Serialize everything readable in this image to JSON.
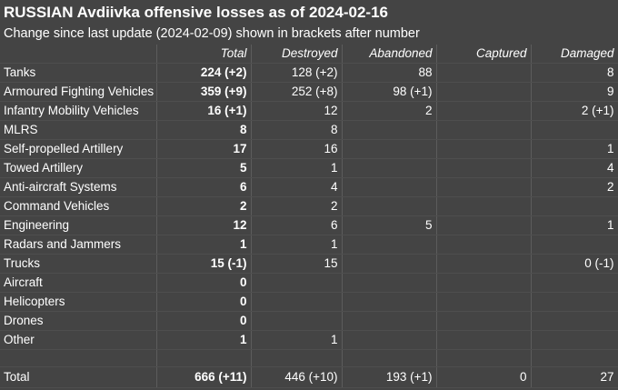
{
  "title": "RUSSIAN Avdiivka offensive losses as of 2024-02-16",
  "subtitle": "Change since last update (2024-02-09) shown in brackets after number",
  "columns": [
    "",
    "Total",
    "Destroyed",
    "Abandoned",
    "Captured",
    "Damaged"
  ],
  "rows": [
    {
      "category": "Tanks",
      "total": "224 (+2)",
      "destroyed": "128 (+2)",
      "abandoned": "88",
      "captured": "",
      "damaged": "8"
    },
    {
      "category": "Armoured Fighting Vehicles",
      "total": "359 (+9)",
      "destroyed": "252 (+8)",
      "abandoned": "98 (+1)",
      "captured": "",
      "damaged": "9"
    },
    {
      "category": "Infantry Mobility Vehicles",
      "total": "16 (+1)",
      "destroyed": "12",
      "abandoned": "2",
      "captured": "",
      "damaged": "2 (+1)"
    },
    {
      "category": "MLRS",
      "total": "8",
      "destroyed": "8",
      "abandoned": "",
      "captured": "",
      "damaged": ""
    },
    {
      "category": "Self-propelled Artillery",
      "total": "17",
      "destroyed": "16",
      "abandoned": "",
      "captured": "",
      "damaged": "1"
    },
    {
      "category": "Towed Artillery",
      "total": "5",
      "destroyed": "1",
      "abandoned": "",
      "captured": "",
      "damaged": "4"
    },
    {
      "category": "Anti-aircraft Systems",
      "total": "6",
      "destroyed": "4",
      "abandoned": "",
      "captured": "",
      "damaged": "2"
    },
    {
      "category": "Command Vehicles",
      "total": "2",
      "destroyed": "2",
      "abandoned": "",
      "captured": "",
      "damaged": ""
    },
    {
      "category": "Engineering",
      "total": "12",
      "destroyed": "6",
      "abandoned": "5",
      "captured": "",
      "damaged": "1"
    },
    {
      "category": "Radars and Jammers",
      "total": "1",
      "destroyed": "1",
      "abandoned": "",
      "captured": "",
      "damaged": ""
    },
    {
      "category": "Trucks",
      "total": "15 (-1)",
      "destroyed": "15",
      "abandoned": "",
      "captured": "",
      "damaged": "0 (-1)"
    },
    {
      "category": "Aircraft",
      "total": "0",
      "destroyed": "",
      "abandoned": "",
      "captured": "",
      "damaged": ""
    },
    {
      "category": "Helicopters",
      "total": "0",
      "destroyed": "",
      "abandoned": "",
      "captured": "",
      "damaged": ""
    },
    {
      "category": "Drones",
      "total": "0",
      "destroyed": "",
      "abandoned": "",
      "captured": "",
      "damaged": ""
    },
    {
      "category": "Other",
      "total": "1",
      "destroyed": "1",
      "abandoned": "",
      "captured": "",
      "damaged": ""
    }
  ],
  "totals": {
    "category": "Total",
    "total": "666 (+11)",
    "destroyed": "446 (+10)",
    "abandoned": "193 (+1)",
    "captured": "0",
    "damaged": "27"
  }
}
